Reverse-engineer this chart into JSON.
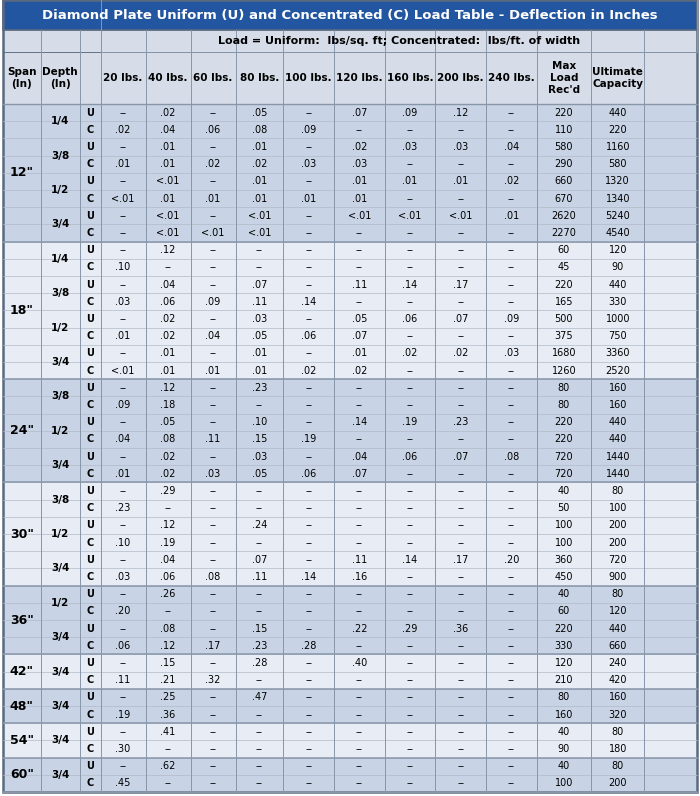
{
  "title": "Diamond Plate Uniform (U) and Concentrated (C) Load Table - Deflection in Inches",
  "subtitle": "Load = Uniform:  lbs/sq. ft; Concentrated:  lbs/ft. of width",
  "title_bg": "#2356a0",
  "title_fg": "#ffffff",
  "header_bg": "#d6dde8",
  "blue_sec_bg": "#c8d4e5",
  "white_sec_bg": "#e8edf5",
  "row_line_color": "#b0bac8",
  "sec_line_color": "#8896aa",
  "outer_border": "#5a6a80",
  "sections": [
    {
      "span": "12\"",
      "bg": "blue",
      "depths": [
        {
          "depth": "1/4",
          "rows": [
            [
              "U",
              "--",
              ".02",
              "--",
              ".05",
              "--",
              ".07",
              ".09",
              ".12",
              "--",
              "220",
              "440"
            ],
            [
              "C",
              ".02",
              ".04",
              ".06",
              ".08",
              ".09",
              "--",
              "--",
              "--",
              "--",
              "110",
              "220"
            ]
          ]
        },
        {
          "depth": "3/8",
          "rows": [
            [
              "U",
              "--",
              ".01",
              "--",
              ".01",
              "--",
              ".02",
              ".03",
              ".03",
              ".04",
              "580",
              "1160"
            ],
            [
              "C",
              ".01",
              ".01",
              ".02",
              ".02",
              ".03",
              ".03",
              "--",
              "--",
              "--",
              "290",
              "580"
            ]
          ]
        },
        {
          "depth": "1/2",
          "rows": [
            [
              "U",
              "--",
              "<.01",
              "--",
              ".01",
              "--",
              ".01",
              ".01",
              ".01",
              ".02",
              "660",
              "1320"
            ],
            [
              "C",
              "<.01",
              ".01",
              ".01",
              ".01",
              ".01",
              ".01",
              "--",
              "--",
              "--",
              "670",
              "1340"
            ]
          ]
        },
        {
          "depth": "3/4",
          "rows": [
            [
              "U",
              "--",
              "<.01",
              "--",
              "<.01",
              "--",
              "<.01",
              "<.01",
              "<.01",
              ".01",
              "2620",
              "5240"
            ],
            [
              "C",
              "--",
              "<.01",
              "<.01",
              "<.01",
              "--",
              "--",
              "--",
              "--",
              "--",
              "2270",
              "4540"
            ]
          ]
        }
      ]
    },
    {
      "span": "18\"",
      "bg": "white",
      "depths": [
        {
          "depth": "1/4",
          "rows": [
            [
              "U",
              "--",
              ".12",
              "--",
              "--",
              "--",
              "--",
              "--",
              "--",
              "--",
              "60",
              "120"
            ],
            [
              "C",
              ".10",
              "--",
              "--",
              "--",
              "--",
              "--",
              "--",
              "--",
              "--",
              "45",
              "90"
            ]
          ]
        },
        {
          "depth": "3/8",
          "rows": [
            [
              "U",
              "--",
              ".04",
              "--",
              ".07",
              "--",
              ".11",
              ".14",
              ".17",
              "--",
              "220",
              "440"
            ],
            [
              "C",
              ".03",
              ".06",
              ".09",
              ".11",
              ".14",
              "--",
              "--",
              "--",
              "--",
              "165",
              "330"
            ]
          ]
        },
        {
          "depth": "1/2",
          "rows": [
            [
              "U",
              "--",
              ".02",
              "--",
              ".03",
              "--",
              ".05",
              ".06",
              ".07",
              ".09",
              "500",
              "1000"
            ],
            [
              "C",
              ".01",
              ".02",
              ".04",
              ".05",
              ".06",
              ".07",
              "--",
              "--",
              "--",
              "375",
              "750"
            ]
          ]
        },
        {
          "depth": "3/4",
          "rows": [
            [
              "U",
              "--",
              ".01",
              "--",
              ".01",
              "--",
              ".01",
              ".02",
              ".02",
              ".03",
              "1680",
              "3360"
            ],
            [
              "C",
              "<.01",
              ".01",
              ".01",
              ".01",
              ".02",
              ".02",
              "--",
              "--",
              "--",
              "1260",
              "2520"
            ]
          ]
        }
      ]
    },
    {
      "span": "24\"",
      "bg": "blue",
      "depths": [
        {
          "depth": "3/8",
          "rows": [
            [
              "U",
              "--",
              ".12",
              "--",
              ".23",
              "--",
              "--",
              "--",
              "--",
              "--",
              "80",
              "160"
            ],
            [
              "C",
              ".09",
              ".18",
              "--",
              "--",
              "--",
              "--",
              "--",
              "--",
              "--",
              "80",
              "160"
            ]
          ]
        },
        {
          "depth": "1/2",
          "rows": [
            [
              "U",
              "--",
              ".05",
              "--",
              ".10",
              "--",
              ".14",
              ".19",
              ".23",
              "--",
              "220",
              "440"
            ],
            [
              "C",
              ".04",
              ".08",
              ".11",
              ".15",
              ".19",
              "--",
              "--",
              "--",
              "--",
              "220",
              "440"
            ]
          ]
        },
        {
          "depth": "3/4",
          "rows": [
            [
              "U",
              "--",
              ".02",
              "--",
              ".03",
              "--",
              ".04",
              ".06",
              ".07",
              ".08",
              "720",
              "1440"
            ],
            [
              "C",
              ".01",
              ".02",
              ".03",
              ".05",
              ".06",
              ".07",
              "--",
              "--",
              "--",
              "720",
              "1440"
            ]
          ]
        }
      ]
    },
    {
      "span": "30\"",
      "bg": "white",
      "depths": [
        {
          "depth": "3/8",
          "rows": [
            [
              "U",
              "--",
              ".29",
              "--",
              "--",
              "--",
              "--",
              "--",
              "--",
              "--",
              "40",
              "80"
            ],
            [
              "C",
              ".23",
              "--",
              "--",
              "--",
              "--",
              "--",
              "--",
              "--",
              "--",
              "50",
              "100"
            ]
          ]
        },
        {
          "depth": "1/2",
          "rows": [
            [
              "U",
              "--",
              ".12",
              "--",
              ".24",
              "--",
              "--",
              "--",
              "--",
              "--",
              "100",
              "200"
            ],
            [
              "C",
              ".10",
              ".19",
              "--",
              "--",
              "--",
              "--",
              "--",
              "--",
              "--",
              "100",
              "200"
            ]
          ]
        },
        {
          "depth": "3/4",
          "rows": [
            [
              "U",
              "--",
              ".04",
              "--",
              ".07",
              "--",
              ".11",
              ".14",
              ".17",
              ".20",
              "360",
              "720"
            ],
            [
              "C",
              ".03",
              ".06",
              ".08",
              ".11",
              ".14",
              ".16",
              "--",
              "--",
              "--",
              "450",
              "900"
            ]
          ]
        }
      ]
    },
    {
      "span": "36\"",
      "bg": "blue",
      "depths": [
        {
          "depth": "1/2",
          "rows": [
            [
              "U",
              "--",
              ".26",
              "--",
              "--",
              "--",
              "--",
              "--",
              "--",
              "--",
              "40",
              "80"
            ],
            [
              "C",
              ".20",
              "--",
              "--",
              "--",
              "--",
              "--",
              "--",
              "--",
              "--",
              "60",
              "120"
            ]
          ]
        },
        {
          "depth": "3/4",
          "rows": [
            [
              "U",
              "--",
              ".08",
              "--",
              ".15",
              "--",
              ".22",
              ".29",
              ".36",
              "--",
              "220",
              "440"
            ],
            [
              "C",
              ".06",
              ".12",
              ".17",
              ".23",
              ".28",
              "--",
              "--",
              "--",
              "--",
              "330",
              "660"
            ]
          ]
        }
      ]
    },
    {
      "span": "42\"",
      "bg": "white",
      "depths": [
        {
          "depth": "3/4",
          "rows": [
            [
              "U",
              "--",
              ".15",
              "--",
              ".28",
              "--",
              ".40",
              "--",
              "--",
              "--",
              "120",
              "240"
            ],
            [
              "C",
              ".11",
              ".21",
              ".32",
              "--",
              "--",
              "--",
              "--",
              "--",
              "--",
              "210",
              "420"
            ]
          ]
        }
      ]
    },
    {
      "span": "48\"",
      "bg": "blue",
      "depths": [
        {
          "depth": "3/4",
          "rows": [
            [
              "U",
              "--",
              ".25",
              "--",
              ".47",
              "--",
              "--",
              "--",
              "--",
              "--",
              "80",
              "160"
            ],
            [
              "C",
              ".19",
              ".36",
              "--",
              "--",
              "--",
              "--",
              "--",
              "--",
              "--",
              "160",
              "320"
            ]
          ]
        }
      ]
    },
    {
      "span": "54\"",
      "bg": "white",
      "depths": [
        {
          "depth": "3/4",
          "rows": [
            [
              "U",
              "--",
              ".41",
              "--",
              "--",
              "--",
              "--",
              "--",
              "--",
              "--",
              "40",
              "80"
            ],
            [
              "C",
              ".30",
              "--",
              "--",
              "--",
              "--",
              "--",
              "--",
              "--",
              "--",
              "90",
              "180"
            ]
          ]
        }
      ]
    },
    {
      "span": "60\"",
      "bg": "blue",
      "depths": [
        {
          "depth": "3/4",
          "rows": [
            [
              "U",
              "--",
              ".62",
              "--",
              "--",
              "--",
              "--",
              "--",
              "--",
              "--",
              "40",
              "80"
            ],
            [
              "C",
              ".45",
              "--",
              "--",
              "--",
              "--",
              "--",
              "--",
              "--",
              "--",
              "100",
              "200"
            ]
          ]
        }
      ]
    }
  ]
}
